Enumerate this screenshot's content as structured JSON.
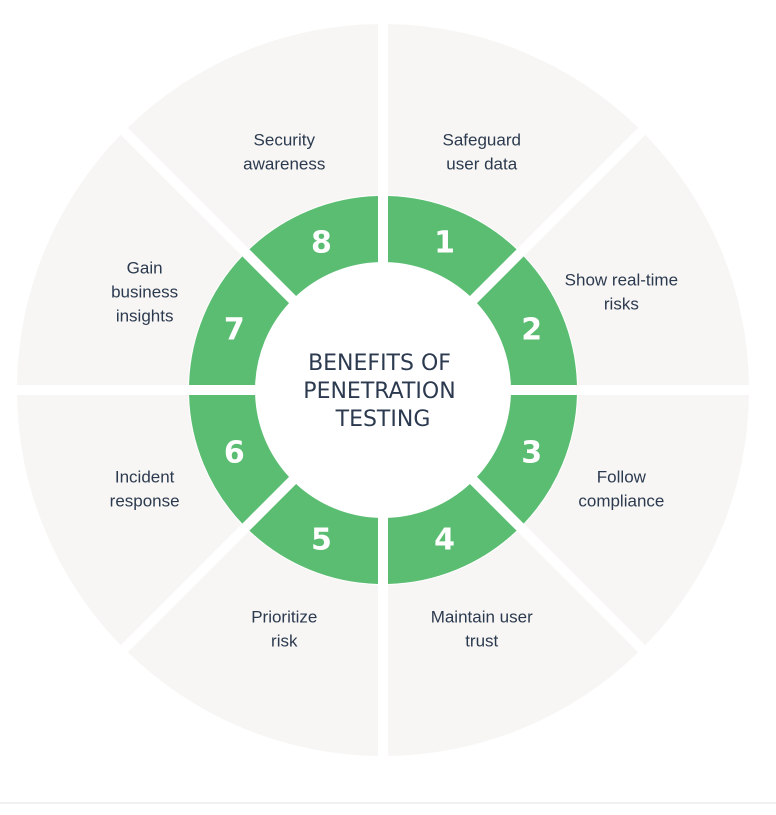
{
  "title": {
    "lines": [
      "BENEFITS OF",
      "PENETRATION",
      "TESTING"
    ]
  },
  "benefits": [
    {
      "number": "1",
      "label_lines": [
        "Safeguard",
        "user data"
      ]
    },
    {
      "number": "2",
      "label_lines": [
        "Show real-time",
        "risks"
      ]
    },
    {
      "number": "3",
      "label_lines": [
        "Follow",
        "compliance"
      ]
    },
    {
      "number": "4",
      "label_lines": [
        "Maintain user",
        "trust"
      ]
    },
    {
      "number": "5",
      "label_lines": [
        "Prioritize",
        "risk"
      ]
    },
    {
      "number": "6",
      "label_lines": [
        "Incident",
        "response"
      ]
    },
    {
      "number": "7",
      "label_lines": [
        "Gain",
        "business",
        "insights"
      ]
    },
    {
      "number": "8",
      "label_lines": [
        "Security",
        "awareness"
      ]
    }
  ],
  "colors": {
    "outer_segment": "#f7f6f4",
    "inner_segment": "#5bbd72",
    "number_text": "#ffffff",
    "label_text": "#2c3a4f",
    "background": "#ffffff"
  }
}
